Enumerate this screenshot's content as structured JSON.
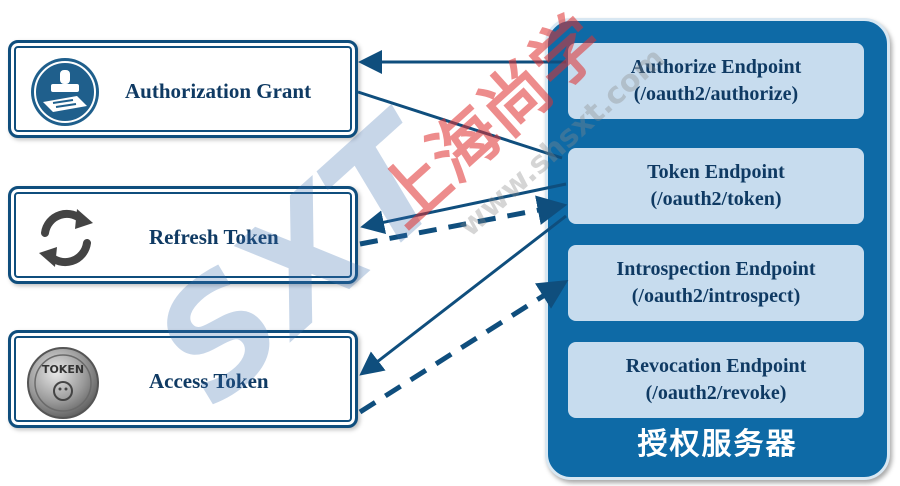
{
  "clients": {
    "authorization_grant": "Authorization Grant",
    "refresh_token": "Refresh Token",
    "access_token": "Access Token",
    "coin_text": "TOKEN"
  },
  "server": {
    "title": "授权服务器",
    "endpoints": [
      {
        "name": "Authorize Endpoint",
        "path": "(/oauth2/authorize)"
      },
      {
        "name": "Token Endpoint",
        "path": "(/oauth2/token)"
      },
      {
        "name": "Introspection Endpoint",
        "path": "(/oauth2/introspect)"
      },
      {
        "name": "Revocation Endpoint",
        "path": "(/oauth2/revoke)"
      }
    ]
  },
  "watermark": {
    "text_cn": "上海尚学",
    "text_url": "www.shsxt.com",
    "logo": "SXT"
  },
  "colors": {
    "dark_blue": "#0f4e7d",
    "server_blue": "#0e6aa6",
    "endpoint_fill": "#c7dcee",
    "watermark_red": "#e03030"
  }
}
